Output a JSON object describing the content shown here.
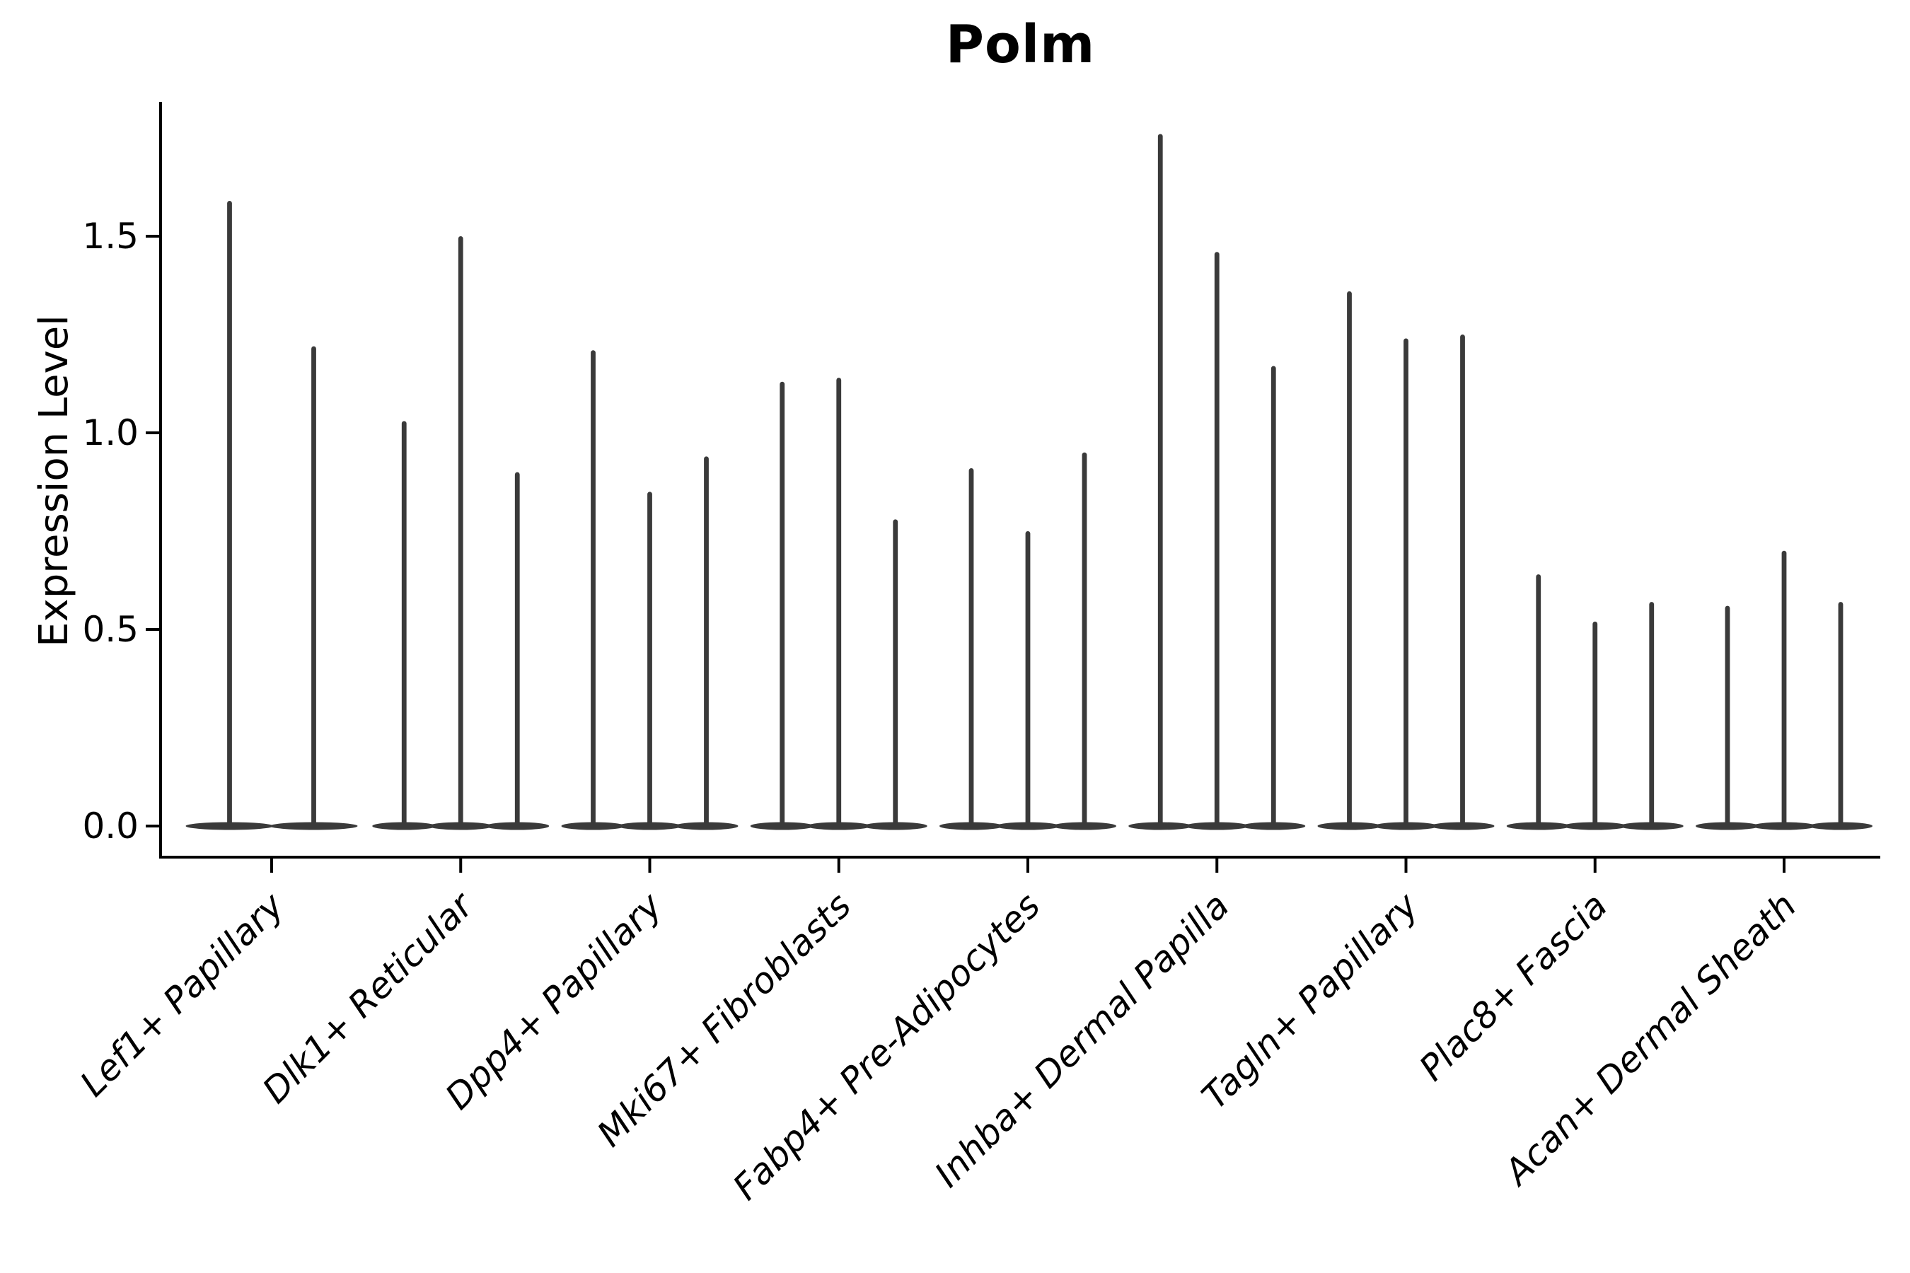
{
  "title": "Polm",
  "axes": {
    "ylabel": "Expression Level",
    "y_tick_labels": [
      "0.0",
      "0.5",
      "1.0",
      "1.5"
    ],
    "y_tick_values": [
      0.0,
      0.5,
      1.0,
      1.5
    ]
  },
  "style": {
    "violin_color": "#3a3a3a",
    "axis_color": "#000000",
    "text_color": "#000000",
    "background": "#ffffff"
  },
  "chart_data": {
    "type": "violin",
    "title": "Polm",
    "xlabel": "",
    "ylabel": "Expression Level",
    "categories": [
      "Lef1+ Papillary",
      "Dlk1+ Reticular",
      "Dpp4+ Papillary",
      "Mki67+ Fibroblasts",
      "Fabp4+ Pre-Adipocytes",
      "Inhba+ Dermal Papilla",
      "Tagln+ Papillary",
      "Plac8+ Fascia",
      "Acan+ Dermal Sheath"
    ],
    "violins_per_category": [
      2,
      3,
      3,
      3,
      3,
      3,
      3,
      3,
      3
    ],
    "violin_peak_values": [
      [
        1.59,
        1.22
      ],
      [
        1.03,
        1.5,
        0.9
      ],
      [
        1.21,
        0.85,
        0.94
      ],
      [
        1.13,
        1.14,
        0.78
      ],
      [
        0.91,
        0.75,
        0.95
      ],
      [
        1.76,
        1.46,
        1.17
      ],
      [
        1.36,
        1.24,
        1.25
      ],
      [
        0.64,
        0.52,
        0.57
      ],
      [
        0.56,
        0.7,
        0.57
      ]
    ],
    "violin_min_value": 0.0,
    "shape_note_visible": "needle-thin violins with wide flat base at 0",
    "yticks": [
      0.0,
      0.5,
      1.0,
      1.5
    ],
    "ytick_labels": [
      "0.0",
      "0.5",
      "1.0",
      "1.5"
    ],
    "ylim": [
      -0.08,
      1.84
    ],
    "grid": false,
    "legend": false
  }
}
